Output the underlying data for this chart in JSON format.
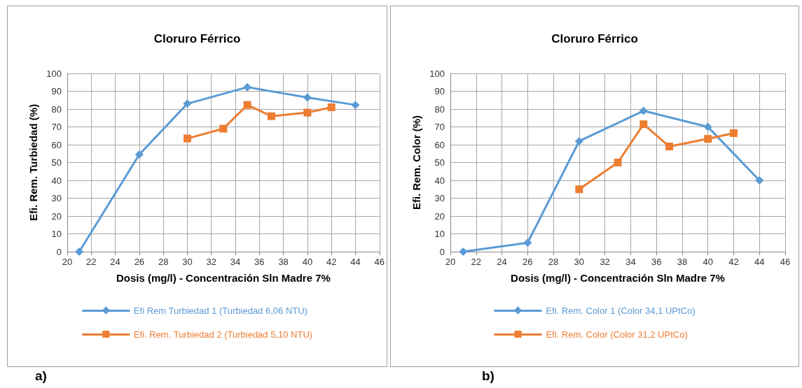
{
  "chart_data": [
    {
      "type": "line",
      "title": "Cloruro Férrico",
      "xlabel": "Dosis (mg/l) - Concentración Sln Madre 7%",
      "ylabel": "Efi. Rem. Turbiedad (%)",
      "xlim": [
        20,
        46
      ],
      "xticks": [
        20,
        22,
        24,
        26,
        28,
        30,
        32,
        34,
        36,
        38,
        40,
        42,
        44,
        46
      ],
      "ylim": [
        0,
        100
      ],
      "yticks": [
        0,
        10,
        20,
        30,
        40,
        50,
        60,
        70,
        80,
        90,
        100
      ],
      "grid": true,
      "legend": "bottom",
      "annotations": [
        "a)"
      ],
      "series": [
        {
          "name": "Efi Rem Turbiedad 1 (Turbiedad 6,06 NTU)",
          "color": "#5b9bd5",
          "marker": "diamond",
          "x": [
            21,
            26,
            30,
            35,
            40,
            44
          ],
          "values": [
            0,
            54.5,
            83,
            92.3,
            86.5,
            82.3
          ]
        },
        {
          "name": "Efi. Rem. Turbiedad 2 (Turbiedad 5,10 NTU)",
          "color": "#ed7d31",
          "marker": "square",
          "x": [
            30,
            33,
            35,
            37,
            40,
            42
          ],
          "values": [
            63.5,
            69,
            82.3,
            76,
            78,
            81
          ]
        }
      ]
    },
    {
      "type": "line",
      "title": "Cloruro Férrico",
      "xlabel": "Dosis (mg/l) - Concentración Sln Madre 7%",
      "ylabel": "Efi. Rem. Color (%)",
      "xlim": [
        20,
        46
      ],
      "xticks": [
        20,
        22,
        24,
        26,
        28,
        30,
        32,
        34,
        36,
        38,
        40,
        42,
        44,
        46
      ],
      "ylim": [
        0,
        100
      ],
      "yticks": [
        0,
        10,
        20,
        30,
        40,
        50,
        60,
        70,
        80,
        90,
        100
      ],
      "grid": true,
      "legend": "bottom",
      "annotations": [
        "b)"
      ],
      "series": [
        {
          "name": "Efi. Rem. Color 1 (Color 34,1 UPtCo)",
          "color": "#5b9bd5",
          "marker": "diamond",
          "x": [
            21,
            26,
            30,
            35,
            40,
            44
          ],
          "values": [
            0,
            5,
            62,
            79,
            70,
            40
          ]
        },
        {
          "name": "Efi. Rem. Color (Color 31,2 UPtCo)",
          "color": "#ed7d31",
          "marker": "square",
          "x": [
            30,
            33,
            35,
            37,
            40,
            42
          ],
          "values": [
            35,
            50,
            71.5,
            59,
            63.3,
            66.5
          ]
        }
      ]
    }
  ]
}
